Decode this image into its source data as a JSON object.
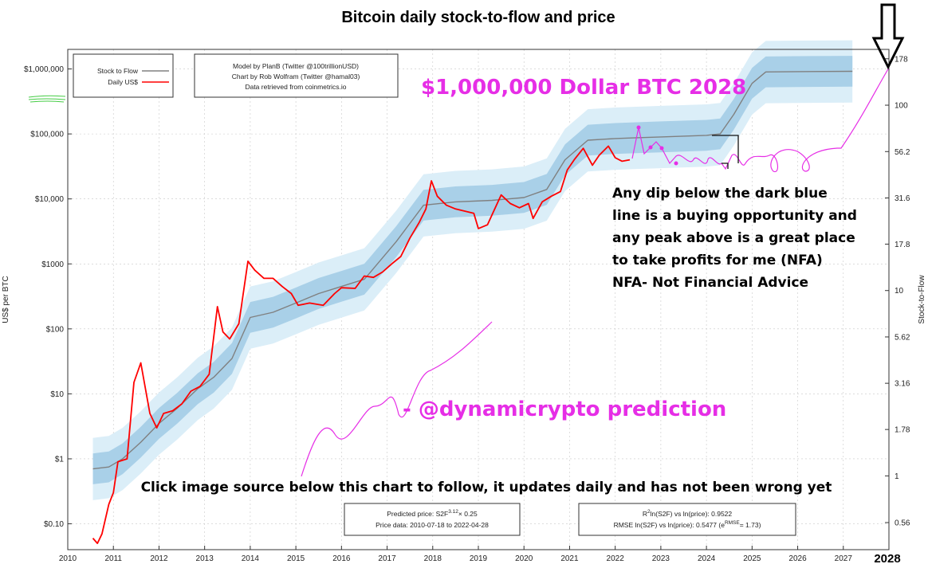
{
  "chart_data": {
    "type": "line",
    "title": "Bitcoin daily stock-to-flow and price",
    "ylabel": "US$ per BTC",
    "y2label": "Stock-to-Flow",
    "xlim": [
      2010,
      2028
    ],
    "ylim": [
      0.04,
      2000000
    ],
    "y2lim": [
      0.4,
      200
    ],
    "yscale": "log",
    "y2scale": "log",
    "x_ticks": [
      2010,
      2011,
      2012,
      2013,
      2014,
      2015,
      2016,
      2017,
      2018,
      2019,
      2020,
      2021,
      2022,
      2023,
      2024,
      2025,
      2026,
      2027
    ],
    "x_last_tick": "2028",
    "y_ticks": [
      {
        "value": 0.1,
        "label": "$0.10"
      },
      {
        "value": 1,
        "label": "$1"
      },
      {
        "value": 10,
        "label": "$10"
      },
      {
        "value": 100,
        "label": "$100"
      },
      {
        "value": 1000,
        "label": "$1000"
      },
      {
        "value": 10000,
        "label": "$10,000"
      },
      {
        "value": 100000,
        "label": "$100,000"
      },
      {
        "value": 1000000,
        "label": "$1,000,000"
      }
    ],
    "y2_ticks": [
      {
        "value": 0.56,
        "label": "0.56"
      },
      {
        "value": 1,
        "label": "1"
      },
      {
        "value": 1.78,
        "label": "1.78"
      },
      {
        "value": 3.16,
        "label": "3.16"
      },
      {
        "value": 5.62,
        "label": "5.62"
      },
      {
        "value": 10,
        "label": "10"
      },
      {
        "value": 17.8,
        "label": "17.8"
      },
      {
        "value": 31.6,
        "label": "31.6"
      },
      {
        "value": 56.2,
        "label": "56.2"
      },
      {
        "value": 100,
        "label": "100"
      },
      {
        "value": 178,
        "label": "178"
      }
    ],
    "grid": true,
    "legend": {
      "position": "top-left",
      "entries": [
        {
          "name": "Stock to Flow",
          "color": "#808080"
        },
        {
          "name": "Daily US$",
          "color": "#ff0000"
        }
      ]
    },
    "credits": [
      "Model by PlanB (Twitter @100trillionUSD)",
      "Chart by Rob Wolfram (Twitter @hamal03)",
      "Data retrieved from coinmetrics.io"
    ],
    "footer_left": {
      "line1_prefix": "Predicted price: S2F",
      "line1_sup": "3.12",
      "line1_suffix": "× 0.25",
      "line2": "Price data: 2010-07-18 to 2022-04-28"
    },
    "footer_right": {
      "line1_prefix": "R",
      "line1_sup": "2",
      "line1_suffix": "ln(S2F) vs ln(price): 0.9522",
      "line2_prefix": "RMSE ln(S2F) vs ln(price): 0.5477 (e",
      "line2_sup": "RMSE",
      "line2_suffix": "= 1.73)"
    },
    "series": [
      {
        "name": "Stock to Flow",
        "color": "#808080",
        "x": [
          2010.55,
          2010.9,
          2011.2,
          2011.6,
          2012.0,
          2012.4,
          2012.85,
          2013.2,
          2013.6,
          2014.0,
          2014.5,
          2015.0,
          2015.5,
          2016.0,
          2016.5,
          2016.6,
          2017.2,
          2017.8,
          2018.5,
          2019.3,
          2020.0,
          2020.5,
          2020.9,
          2021.4,
          2022.0,
          2022.4,
          2023.0,
          2024.0,
          2024.3,
          2024.6,
          2025.0,
          2025.3,
          2026.0,
          2027.2
        ],
        "y": [
          0.7,
          0.75,
          1.0,
          1.8,
          3.5,
          6.0,
          12.0,
          18.0,
          35.0,
          150.0,
          180.0,
          250.0,
          350.0,
          450.0,
          580.0,
          700.0,
          2200.0,
          8000.0,
          9000.0,
          9500.0,
          10500.0,
          14000.0,
          40000.0,
          80000.0,
          85000.0,
          87000.0,
          90000.0,
          95000.0,
          100000.0,
          200000.0,
          600000.0,
          900000.0,
          910000.0,
          920000.0
        ]
      },
      {
        "name": "Daily US$",
        "color": "#ff0000",
        "x": [
          2010.55,
          2010.65,
          2010.75,
          2010.9,
          2011.0,
          2011.1,
          2011.3,
          2011.45,
          2011.6,
          2011.8,
          2011.95,
          2012.1,
          2012.3,
          2012.5,
          2012.7,
          2012.9,
          2013.1,
          2013.28,
          2013.4,
          2013.55,
          2013.75,
          2013.95,
          2014.1,
          2014.3,
          2014.5,
          2014.7,
          2014.9,
          2015.05,
          2015.3,
          2015.6,
          2015.85,
          2016.0,
          2016.3,
          2016.5,
          2016.7,
          2016.9,
          2017.1,
          2017.3,
          2017.5,
          2017.7,
          2017.85,
          2017.97,
          2018.1,
          2018.3,
          2018.5,
          2018.7,
          2018.9,
          2019.0,
          2019.2,
          2019.5,
          2019.7,
          2019.9,
          2020.1,
          2020.2,
          2020.4,
          2020.6,
          2020.8,
          2020.95,
          2021.1,
          2021.3,
          2021.5,
          2021.65,
          2021.85,
          2022.0,
          2022.15,
          2022.32
        ],
        "y": [
          0.06,
          0.05,
          0.07,
          0.2,
          0.3,
          0.9,
          1.0,
          15.0,
          30.0,
          5.0,
          3.0,
          5.0,
          5.5,
          7.0,
          11.0,
          13.0,
          20.0,
          220.0,
          90.0,
          70.0,
          120.0,
          1100.0,
          800.0,
          600.0,
          600.0,
          450.0,
          350.0,
          230.0,
          250.0,
          230.0,
          350.0,
          430.0,
          420.0,
          650.0,
          620.0,
          750.0,
          1000.0,
          1300.0,
          2500.0,
          4300.0,
          7000.0,
          19000.0,
          11000.0,
          8000.0,
          7000.0,
          6500.0,
          6000.0,
          3500.0,
          4000.0,
          11500.0,
          8500.0,
          7300.0,
          8500.0,
          5000.0,
          9000.0,
          11000.0,
          13000.0,
          28000.0,
          40000.0,
          60000.0,
          33000.0,
          47000.0,
          65000.0,
          43000.0,
          38000.0,
          40000.0
        ]
      }
    ]
  },
  "annotations": {
    "headline": "$1,000,000 Dollar BTC 2028",
    "dip_text": [
      "Any dip below the dark blue",
      "line is a buying opportunity and",
      "any peak above is a great place",
      "to take profits for me (NFA)",
      "NFA- Not Financial Advice"
    ],
    "prediction_label": "- @dynamicrypto prediction",
    "source_note": "Click image source below this chart to follow, it updates daily and has not been wrong yet",
    "year_2028": "2028"
  },
  "colors": {
    "price": "#ff0000",
    "s2f": "#808080",
    "band_outer": "#dbeef8",
    "band_inner": "#a9d0e8",
    "annotation": "#e62ee6"
  }
}
